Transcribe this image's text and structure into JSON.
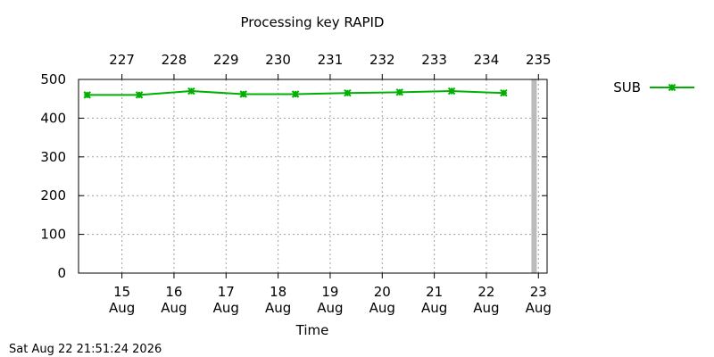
{
  "chart_data": {
    "type": "line",
    "title": "Processing key RAPID",
    "xlabel": "Time",
    "ylabel": "",
    "ylim": [
      0,
      500
    ],
    "y_ticks": [
      0,
      100,
      200,
      300,
      400,
      500
    ],
    "x_range_days": [
      "Aug 14 04:00",
      "Aug 23 04:00"
    ],
    "bottom_ticks": [
      {
        "day": "15",
        "month": "Aug"
      },
      {
        "day": "16",
        "month": "Aug"
      },
      {
        "day": "17",
        "month": "Aug"
      },
      {
        "day": "18",
        "month": "Aug"
      },
      {
        "day": "19",
        "month": "Aug"
      },
      {
        "day": "20",
        "month": "Aug"
      },
      {
        "day": "21",
        "month": "Aug"
      },
      {
        "day": "22",
        "month": "Aug"
      },
      {
        "day": "23",
        "month": "Aug"
      }
    ],
    "top_ticks": [
      "227",
      "228",
      "229",
      "230",
      "231",
      "232",
      "233",
      "234",
      "235"
    ],
    "grid": true,
    "legend_position": "right",
    "current_time_marker": "Aug 22 22:00",
    "series": [
      {
        "name": "SUB",
        "color": "#00b000",
        "x": [
          "Aug 14 08:00",
          "Aug 15 08:00",
          "Aug 16 08:00",
          "Aug 17 08:00",
          "Aug 18 08:00",
          "Aug 19 08:00",
          "Aug 20 08:00",
          "Aug 21 08:00",
          "Aug 22 08:00"
        ],
        "values": [
          460,
          460,
          470,
          462,
          462,
          465,
          467,
          470,
          465
        ]
      }
    ]
  },
  "footer_timestamp": "Sat Aug 22 21:51:24 2026"
}
